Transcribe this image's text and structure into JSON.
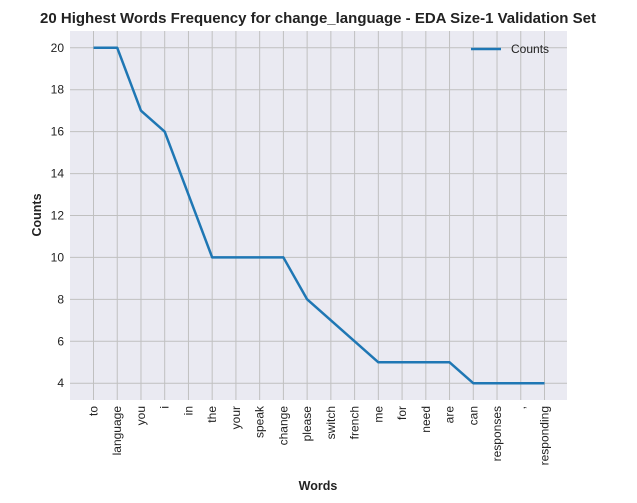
{
  "chart_data": {
    "type": "line",
    "title": "20 Highest Words Frequency for change_language - EDA Size-1 Validation Set",
    "xlabel": "Words",
    "ylabel": "Counts",
    "categories": [
      "to",
      "language",
      "you",
      "i",
      "in",
      "the",
      "your",
      "speak",
      "change",
      "please",
      "switch",
      "french",
      "me",
      "for",
      "need",
      "are",
      "can",
      "responses",
      ",",
      "responding"
    ],
    "series": [
      {
        "name": "Counts",
        "values": [
          20,
          20,
          17,
          16,
          13,
          10,
          10,
          10,
          10,
          8,
          7,
          6,
          5,
          5,
          5,
          5,
          4,
          4,
          4,
          4
        ]
      }
    ],
    "ylim": [
      3.2,
      20.8
    ],
    "yticks": [
      4,
      6,
      8,
      10,
      12,
      14,
      16,
      18,
      20
    ],
    "grid": true,
    "legend_position": "top-right",
    "colors": {
      "line": "#1f77b4",
      "plot_background": "#eaeaf2",
      "grid": "#c0c0c0"
    }
  }
}
